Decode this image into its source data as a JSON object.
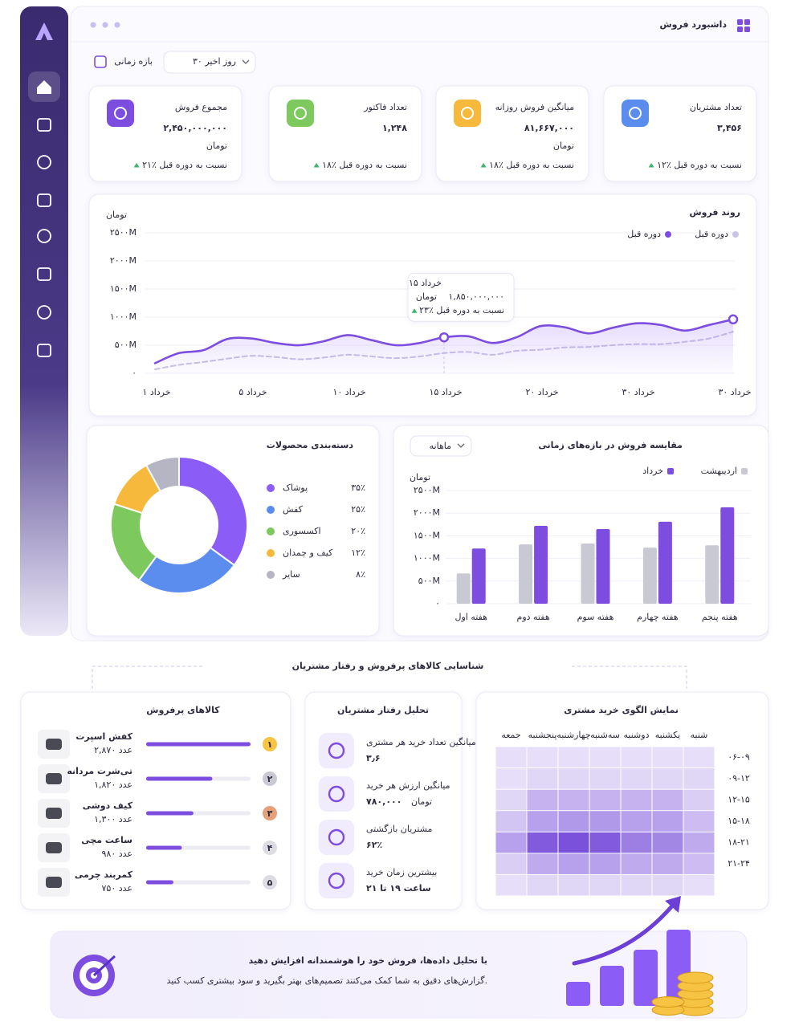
{
  "header": {
    "title": "داشبورد فروش"
  },
  "filter": {
    "label": "بازه زمانی",
    "value": "۳۰ روز اخیر"
  },
  "kpis": [
    {
      "title": "تعداد مشتریان",
      "value": "۳,۴۵۶",
      "change": "۱۲٪ نسبت به دوره قبل",
      "color": "#5b8def"
    },
    {
      "title": "میانگین فروش روزانه",
      "value": "۸۱,۶۶۷,۰۰۰",
      "unit": "تومان",
      "change": "۱۸٪ نسبت به دوره قبل",
      "color": "#f6b93b"
    },
    {
      "title": "تعداد فاکتور",
      "value": "۱,۲۴۸",
      "change": "۱۸٪ نسبت به دوره قبل",
      "color": "#7dc95e"
    },
    {
      "title": "مجموع فروش",
      "value": "۲,۴۵۰,۰۰۰,۰۰۰",
      "unit": "تومان",
      "change": "۲۱٪ نسبت به دوره قبل",
      "color": "#7c4dde"
    }
  ],
  "line_chart": {
    "type": "line",
    "title": "روند فروش",
    "y_label": "تومان",
    "categories": [
      "۱ خرداد",
      "۵ خرداد",
      "۱۰ خرداد",
      "۱۵ خرداد",
      "۲۰ خرداد",
      "۳۰ خرداد",
      "۳۰ خرداد"
    ],
    "series": [
      {
        "name": "دوره قبل",
        "color": "#cbc3e6",
        "style": "dashed",
        "values": [
          70,
          150,
          200,
          260,
          310,
          290,
          250,
          280,
          330,
          300,
          270,
          300,
          360,
          380,
          330,
          400,
          420,
          460,
          470,
          500,
          520,
          520,
          560,
          620,
          740
        ]
      },
      {
        "name": "دوره قبل",
        "color": "#7c4dde",
        "style": "solid",
        "fill_area": true,
        "values": [
          180,
          360,
          410,
          610,
          620,
          540,
          500,
          570,
          680,
          590,
          500,
          540,
          640,
          660,
          540,
          640,
          840,
          820,
          710,
          810,
          890,
          860,
          760,
          860,
          960
        ]
      }
    ],
    "ylim": [
      0,
      2500
    ],
    "yticks": [
      {
        "value": 0,
        "label": "۰"
      },
      {
        "value": 500,
        "label": "۵۰۰M"
      },
      {
        "value": 1000,
        "label": "۱۰۰۰M"
      },
      {
        "value": 1500,
        "label": "۱۵۰۰M"
      },
      {
        "value": 2000,
        "label": "۲۰۰۰M"
      },
      {
        "value": 2500,
        "label": "۲۵۰۰M"
      }
    ],
    "grid": true,
    "tooltip": {
      "date": "۱۵ خرداد",
      "value": "۱,۸۵۰,۰۰۰,۰۰۰",
      "unit": "تومان",
      "change": "۲۳٪ نسبت به دوره قبل"
    }
  },
  "donut": {
    "type": "pie",
    "title": "دسته‌بندی محصولات",
    "categories": [
      "پوشاک",
      "کفش",
      "اکسسوری",
      "کیف و چمدان",
      "سایر"
    ],
    "values": [
      35,
      25,
      20,
      12,
      8
    ],
    "value_labels": [
      "۳۵٪",
      "۲۵٪",
      "۲۰٪",
      "۱۲٪",
      "۸٪"
    ],
    "colors": [
      "#8b5cf6",
      "#5b8def",
      "#7dc95e",
      "#f6b93b",
      "#b5b5c3"
    ]
  },
  "bar_chart": {
    "type": "bar",
    "title": "مقایسه فروش در بازه‌های زمانی",
    "dropdown": "ماهانه",
    "y_label": "تومان",
    "categories": [
      "هفته اول",
      "هفته دوم",
      "هفته سوم",
      "هفته چهارم",
      "هفته پنجم"
    ],
    "series": [
      {
        "name": "اردیبهشت",
        "color": "#c9c9d3",
        "values": [
          670,
          1310,
          1330,
          1240,
          1290
        ]
      },
      {
        "name": "خرداد",
        "color": "#7c4dde",
        "values": [
          1220,
          1720,
          1650,
          1810,
          2130
        ]
      }
    ],
    "ylim": [
      0,
      2500
    ],
    "yticks": [
      {
        "value": 0,
        "label": "۰"
      },
      {
        "value": 500,
        "label": "۵۰۰M"
      },
      {
        "value": 1000,
        "label": "۱۰۰۰M"
      },
      {
        "value": 1500,
        "label": "۱۵۰۰M"
      },
      {
        "value": 2000,
        "label": "۲۰۰۰M"
      },
      {
        "value": 2500,
        "label": "۲۵۰۰M"
      }
    ]
  },
  "section_title": "شناسایی کالاهای پرفروش و رفتار مشتریان",
  "top_products": {
    "title": "کالاهای پرفروش",
    "ranks": [
      "۱",
      "۲",
      "۳",
      "۴",
      "۵"
    ],
    "rank_colors": [
      "#f6c343",
      "#c9c9d3",
      "#e6a07a",
      "#dcdce3",
      "#dcdce3"
    ],
    "names": [
      "کفش اسپرت",
      "تی‌شرت مردانه",
      "کیف دوشی",
      "ساعت مچی",
      "کمربند چرمی"
    ],
    "values": [
      2870,
      1820,
      1300,
      980,
      750
    ],
    "value_labels": [
      "۲,۸۷۰ عدد",
      "۱,۸۲۰ عدد",
      "۱,۳۰۰ عدد",
      "۹۸۰ عدد",
      "۷۵۰ عدد"
    ],
    "color": "#7c4dde"
  },
  "behavior": {
    "title": "تحلیل رفتار مشتریان",
    "items": [
      {
        "label": "میانگین تعداد خرید هر مشتری",
        "value": "۳٫۶"
      },
      {
        "label": "میانگین ارزش هر خرید",
        "value": "۷۸۰,۰۰۰",
        "unit": "تومان"
      },
      {
        "label": "مشتریان بازگشتی",
        "value": "۶۲٪"
      },
      {
        "label": "بیشترین زمان خرید",
        "value": "ساعت ۱۹ تا ۲۱"
      }
    ]
  },
  "heatmap": {
    "type": "heatmap",
    "title": "نمایش الگوی خرید مشتری",
    "columns": [
      "شنبه",
      "یکشنبه",
      "دوشنبه",
      "سه‌شنبه",
      "چهارشنبه",
      "پنجشنبه",
      "جمعه"
    ],
    "rows": [
      "۰۶-۰۹",
      "۰۹-۱۲",
      "۱۲-۱۵",
      "۱۵-۱۸",
      "۱۸-۲۱",
      "۲۱-۲۴",
      null
    ],
    "values": [
      [
        10,
        10,
        10,
        10,
        10,
        10,
        10
      ],
      [
        15,
        15,
        15,
        15,
        15,
        15,
        10
      ],
      [
        20,
        35,
        35,
        35,
        35,
        35,
        15
      ],
      [
        30,
        45,
        45,
        50,
        50,
        45,
        25
      ],
      [
        40,
        60,
        65,
        85,
        90,
        85,
        45
      ],
      [
        30,
        40,
        40,
        45,
        45,
        40,
        20
      ],
      [
        10,
        15,
        15,
        15,
        15,
        15,
        10
      ]
    ],
    "color": "#6d3fd6"
  },
  "banner": {
    "title": "با تحلیل داده‌ها، فروش خود را هوشمندانه افزایش دهید",
    "text": "گزارش‌های دقیق به شما کمک می‌کنند تصمیم‌های بهتر بگیرید و سود بیشتری کسب کنید."
  }
}
